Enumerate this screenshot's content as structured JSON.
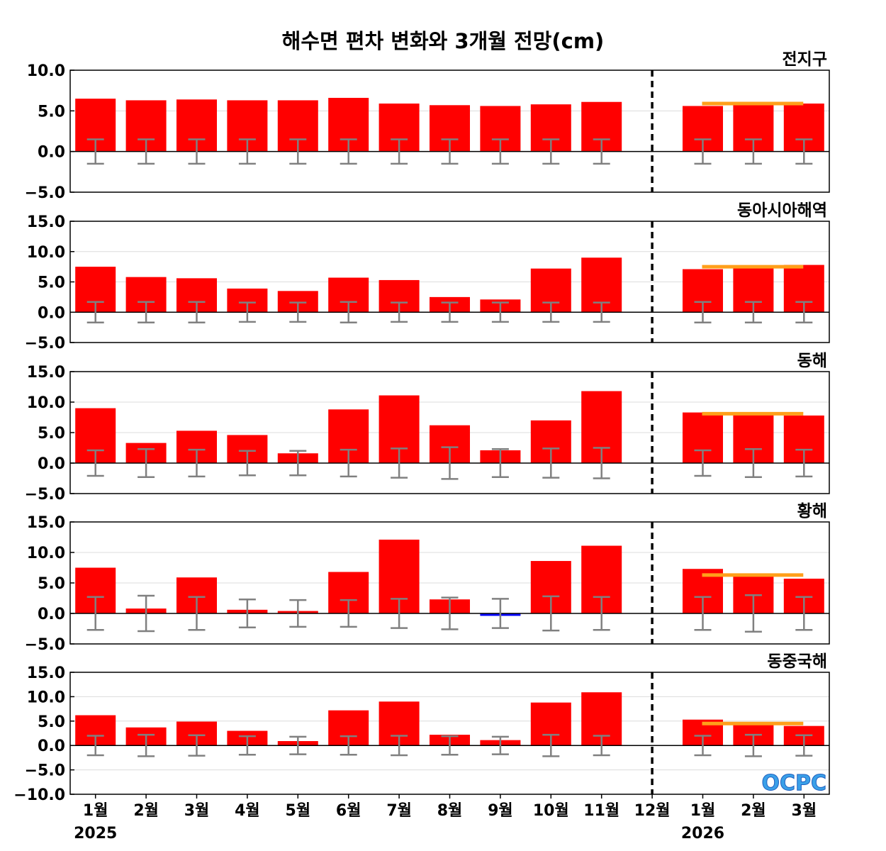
{
  "chart_data": {
    "type": "bar",
    "title": "해수면 편차 변화와 3개월 전망(cm)",
    "x_tick_labels": [
      "1월",
      "2월",
      "3월",
      "4월",
      "5월",
      "6월",
      "7월",
      "8월",
      "9월",
      "10월",
      "11월",
      "12월",
      "1월",
      "2월",
      "3월"
    ],
    "year_labels": [
      "2025",
      "2026"
    ],
    "colors": {
      "positive": "#ff0000",
      "negative": "#0000ff",
      "forecast": "#ff9f1a",
      "error_bar": "#808080",
      "divider": "#000000"
    },
    "logo_text": "OCPC",
    "panels": [
      {
        "name": "전지구",
        "ylim": [
          -5,
          10
        ],
        "yticks": [
          "10.0",
          "5.0",
          "0.0",
          "−5.0"
        ],
        "ytick_values": [
          10,
          5,
          0,
          -5
        ],
        "values": [
          6.5,
          6.3,
          6.4,
          6.3,
          6.3,
          6.6,
          5.9,
          5.7,
          5.6,
          5.8,
          6.1,
          0,
          5.6,
          5.9,
          5.9
        ],
        "errors": [
          1.5,
          1.5,
          1.5,
          1.5,
          1.5,
          1.5,
          1.5,
          1.5,
          1.5,
          1.5,
          1.5,
          null,
          1.5,
          1.5,
          1.5
        ],
        "forecast_level": 5.9
      },
      {
        "name": "동아시아해역",
        "ylim": [
          -5,
          15
        ],
        "yticks": [
          "15.0",
          "10.0",
          "5.0",
          "0.0",
          "−5.0"
        ],
        "ytick_values": [
          15,
          10,
          5,
          0,
          -5
        ],
        "values": [
          7.5,
          5.8,
          5.6,
          3.9,
          3.5,
          5.7,
          5.3,
          2.5,
          2.1,
          7.2,
          9.0,
          0,
          7.1,
          7.5,
          7.8
        ],
        "errors": [
          1.7,
          1.7,
          1.7,
          1.6,
          1.6,
          1.7,
          1.6,
          1.6,
          1.6,
          1.6,
          1.6,
          null,
          1.7,
          1.7,
          1.7
        ],
        "forecast_level": 7.5
      },
      {
        "name": "동해",
        "ylim": [
          -5,
          15
        ],
        "yticks": [
          "15.0",
          "10.0",
          "5.0",
          "0.0",
          "−5.0"
        ],
        "ytick_values": [
          15,
          10,
          5,
          0,
          -5
        ],
        "values": [
          9.0,
          3.3,
          5.3,
          4.6,
          1.6,
          8.8,
          11.1,
          6.2,
          2.1,
          7.0,
          11.8,
          0,
          8.3,
          8.1,
          7.8
        ],
        "errors": [
          2.1,
          2.3,
          2.2,
          2.0,
          2.0,
          2.2,
          2.4,
          2.6,
          2.3,
          2.4,
          2.5,
          null,
          2.1,
          2.3,
          2.2
        ],
        "forecast_level": 8.1
      },
      {
        "name": "황해",
        "ylim": [
          -5,
          15
        ],
        "yticks": [
          "15.0",
          "10.0",
          "5.0",
          "0.0",
          "−5.0"
        ],
        "ytick_values": [
          15,
          10,
          5,
          0,
          -5
        ],
        "values": [
          7.5,
          0.8,
          5.9,
          0.6,
          0.4,
          6.8,
          12.1,
          2.3,
          -0.4,
          8.6,
          11.1,
          0,
          7.3,
          6.3,
          5.7
        ],
        "errors": [
          2.7,
          2.9,
          2.7,
          2.3,
          2.2,
          2.2,
          2.4,
          2.6,
          2.4,
          2.8,
          2.7,
          null,
          2.7,
          3.0,
          2.7
        ],
        "forecast_level": 6.3
      },
      {
        "name": "동중국해",
        "ylim": [
          -10,
          15
        ],
        "yticks": [
          "15.0",
          "10.0",
          "5.0",
          "0.0",
          "−5.0",
          "−10.0"
        ],
        "ytick_values": [
          15,
          10,
          5,
          0,
          -5,
          -10
        ],
        "values": [
          6.2,
          3.7,
          4.9,
          3.0,
          0.9,
          7.2,
          9.0,
          2.2,
          1.1,
          8.8,
          10.9,
          0,
          5.3,
          4.5,
          4.0
        ],
        "errors": [
          2.0,
          2.2,
          2.1,
          1.9,
          1.8,
          1.9,
          2.0,
          1.9,
          1.8,
          2.2,
          2.0,
          null,
          2.0,
          2.2,
          2.1
        ],
        "forecast_level": 4.5
      }
    ]
  }
}
